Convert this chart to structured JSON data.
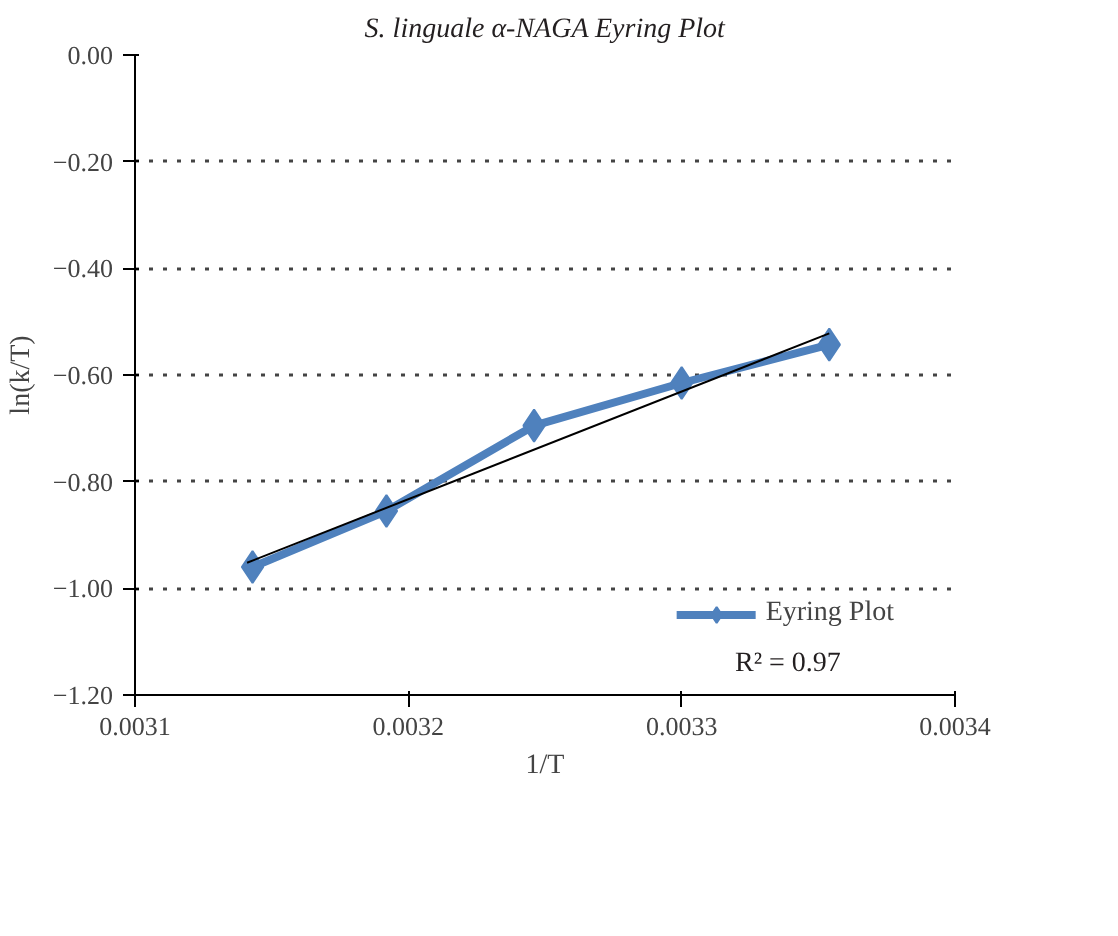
{
  "chart_data": {
    "type": "line",
    "title": "S. linguale α-NAGA Eyring Plot",
    "xlabel": "1/T",
    "ylabel": "ln(k/T)",
    "xlim": [
      0.0031,
      0.0034
    ],
    "xticks": [
      0.0031,
      0.0032,
      0.0033,
      0.0034
    ],
    "ylim": [
      -1.2,
      0.0
    ],
    "yticks": [
      {
        "value": -1.2,
        "label": "−1.20"
      },
      {
        "value": -1.0,
        "label": "−1.00"
      },
      {
        "value": -0.8,
        "label": "−0.80"
      },
      {
        "value": -0.6,
        "label": "−0.60"
      },
      {
        "value": -0.4,
        "label": "−0.40"
      },
      {
        "value": -0.2,
        "label": "−0.20"
      },
      {
        "value": 0.0,
        "label": "0.00"
      }
    ],
    "grid": "y",
    "legend": "bottom right",
    "series": [
      {
        "name": "Eyring Plot",
        "color": "#4f81bd",
        "marker": "diamond",
        "x": [
          0.003143,
          0.003192,
          0.003246,
          0.0033,
          0.003354
        ],
        "values": [
          -0.96,
          -0.855,
          -0.695,
          -0.615,
          -0.543
        ]
      },
      {
        "type": "line",
        "color": "#000000",
        "marker": "none",
        "x": [
          0.003141,
          0.003354
        ],
        "values": [
          -0.952,
          -0.522
        ]
      }
    ],
    "annotations": [
      "R² = 0.97"
    ]
  }
}
